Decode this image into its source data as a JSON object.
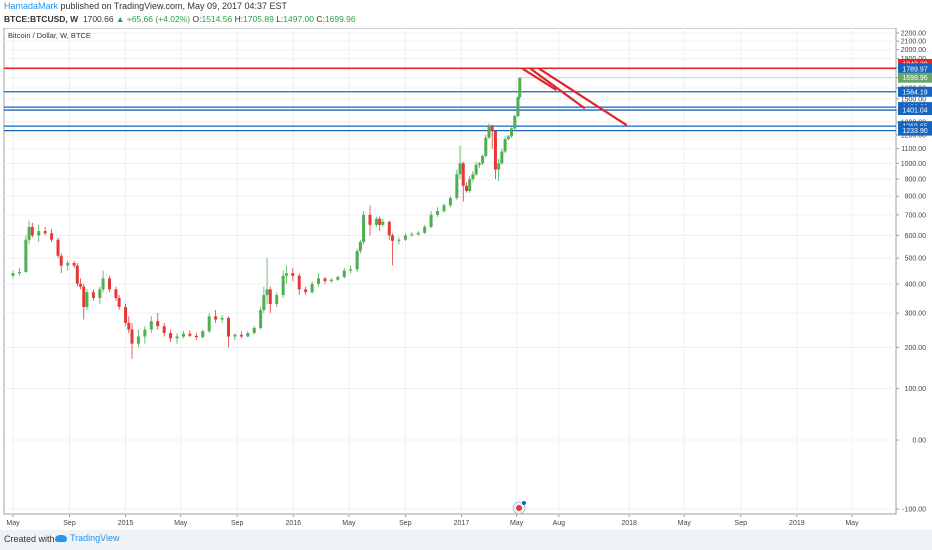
{
  "header": {
    "author": "HamadaMark",
    "published_text": "published on TradingView.com, May 09, 2017 04:37 EST",
    "symbol": "BTCE:BTCUSD, W",
    "last": "1700.66",
    "change": "+65.66 (+4.02%)",
    "open_label": "O:",
    "open": "1514.56",
    "high_label": "H:",
    "high": "1705.89",
    "low_label": "L:",
    "low": "1497.00",
    "close_label": "C:",
    "close": "1699.96"
  },
  "footer": {
    "created_with": "Created with",
    "brand": "TradingView"
  },
  "colors": {
    "up": "#4caf50",
    "down": "#e53935",
    "support": "#1565c0",
    "resistance": "#e0252b",
    "last_price": "#6aa56a",
    "accent": "#2196f3"
  },
  "chart_data": {
    "type": "candlestick",
    "title": "Bitcoin / Dollar, W, BTCE",
    "y_scale": "log",
    "ylim": [
      -100,
      2200
    ],
    "y_ticks": [
      -100,
      0,
      100,
      200,
      300,
      400,
      500,
      600,
      700,
      800,
      900,
      1000,
      1100,
      1200,
      1300,
      1400,
      1500,
      1600,
      1700,
      1800,
      1900,
      2000,
      2100,
      2200
    ],
    "y_tick_labels": [
      "-100.00",
      "0.00",
      "100.00",
      "200.00",
      "300.00",
      "400.00",
      "500.00",
      "600.00",
      "700.00",
      "800.00",
      "900.00",
      "1000.00",
      "1100.00",
      "1200.00",
      "1300.00",
      "1400.00",
      "1500.00",
      "1600.00",
      "1700.00",
      "1800.00",
      "1900.00",
      "2000.00",
      "2100.00",
      "2200.00"
    ],
    "x_range": [
      "2014-05-01",
      "2019-07-01"
    ],
    "x_ticks": [
      {
        "date": "2014-05-01",
        "label": "May"
      },
      {
        "date": "2014-09-01",
        "label": "Sep"
      },
      {
        "date": "2015-01-01",
        "label": "2015"
      },
      {
        "date": "2015-05-01",
        "label": "May"
      },
      {
        "date": "2015-09-01",
        "label": "Sep"
      },
      {
        "date": "2016-01-01",
        "label": "2016"
      },
      {
        "date": "2016-05-01",
        "label": "May"
      },
      {
        "date": "2016-09-01",
        "label": "Sep"
      },
      {
        "date": "2017-01-01",
        "label": "2017"
      },
      {
        "date": "2017-05-01",
        "label": "May"
      },
      {
        "date": "2017-08-01",
        "label": "Aug"
      },
      {
        "date": "2018-01-01",
        "label": "2018"
      },
      {
        "date": "2018-05-01",
        "label": "May"
      },
      {
        "date": "2018-09-01",
        "label": "Sep"
      },
      {
        "date": "2019-01-01",
        "label": "2019"
      },
      {
        "date": "2019-05-01",
        "label": "May"
      }
    ],
    "candles": [
      {
        "date": "2014-05-01",
        "o": 430,
        "h": 450,
        "l": 420,
        "c": 440
      },
      {
        "date": "2014-05-15",
        "o": 440,
        "h": 460,
        "l": 430,
        "c": 445
      },
      {
        "date": "2014-05-29",
        "o": 445,
        "h": 600,
        "l": 440,
        "c": 580
      },
      {
        "date": "2014-06-05",
        "o": 580,
        "h": 670,
        "l": 560,
        "c": 640
      },
      {
        "date": "2014-06-12",
        "o": 640,
        "h": 660,
        "l": 590,
        "c": 600
      },
      {
        "date": "2014-06-26",
        "o": 600,
        "h": 650,
        "l": 570,
        "c": 620
      },
      {
        "date": "2014-07-10",
        "o": 620,
        "h": 640,
        "l": 600,
        "c": 610
      },
      {
        "date": "2014-07-24",
        "o": 610,
        "h": 630,
        "l": 570,
        "c": 580
      },
      {
        "date": "2014-08-07",
        "o": 580,
        "h": 590,
        "l": 500,
        "c": 510
      },
      {
        "date": "2014-08-14",
        "o": 510,
        "h": 520,
        "l": 440,
        "c": 470
      },
      {
        "date": "2014-08-28",
        "o": 470,
        "h": 490,
        "l": 450,
        "c": 480
      },
      {
        "date": "2014-09-11",
        "o": 480,
        "h": 490,
        "l": 460,
        "c": 470
      },
      {
        "date": "2014-09-18",
        "o": 470,
        "h": 480,
        "l": 390,
        "c": 400
      },
      {
        "date": "2014-09-25",
        "o": 400,
        "h": 420,
        "l": 380,
        "c": 390
      },
      {
        "date": "2014-10-02",
        "o": 390,
        "h": 400,
        "l": 280,
        "c": 320
      },
      {
        "date": "2014-10-09",
        "o": 320,
        "h": 380,
        "l": 310,
        "c": 370
      },
      {
        "date": "2014-10-23",
        "o": 370,
        "h": 380,
        "l": 340,
        "c": 350
      },
      {
        "date": "2014-11-06",
        "o": 350,
        "h": 390,
        "l": 330,
        "c": 380
      },
      {
        "date": "2014-11-13",
        "o": 380,
        "h": 450,
        "l": 370,
        "c": 420
      },
      {
        "date": "2014-11-27",
        "o": 420,
        "h": 430,
        "l": 370,
        "c": 380
      },
      {
        "date": "2014-12-11",
        "o": 380,
        "h": 390,
        "l": 340,
        "c": 350
      },
      {
        "date": "2014-12-18",
        "o": 350,
        "h": 360,
        "l": 310,
        "c": 320
      },
      {
        "date": "2015-01-01",
        "o": 320,
        "h": 330,
        "l": 260,
        "c": 270
      },
      {
        "date": "2015-01-08",
        "o": 270,
        "h": 290,
        "l": 240,
        "c": 250
      },
      {
        "date": "2015-01-15",
        "o": 250,
        "h": 270,
        "l": 170,
        "c": 210
      },
      {
        "date": "2015-01-29",
        "o": 210,
        "h": 250,
        "l": 200,
        "c": 230
      },
      {
        "date": "2015-02-12",
        "o": 230,
        "h": 260,
        "l": 210,
        "c": 250
      },
      {
        "date": "2015-02-26",
        "o": 250,
        "h": 290,
        "l": 240,
        "c": 275
      },
      {
        "date": "2015-03-12",
        "o": 275,
        "h": 300,
        "l": 250,
        "c": 260
      },
      {
        "date": "2015-03-26",
        "o": 260,
        "h": 270,
        "l": 230,
        "c": 240
      },
      {
        "date": "2015-04-09",
        "o": 240,
        "h": 250,
        "l": 215,
        "c": 225
      },
      {
        "date": "2015-04-23",
        "o": 225,
        "h": 240,
        "l": 210,
        "c": 230
      },
      {
        "date": "2015-05-07",
        "o": 230,
        "h": 245,
        "l": 225,
        "c": 238
      },
      {
        "date": "2015-05-21",
        "o": 238,
        "h": 248,
        "l": 228,
        "c": 232
      },
      {
        "date": "2015-06-04",
        "o": 232,
        "h": 240,
        "l": 220,
        "c": 228
      },
      {
        "date": "2015-06-18",
        "o": 228,
        "h": 250,
        "l": 225,
        "c": 245
      },
      {
        "date": "2015-07-02",
        "o": 245,
        "h": 300,
        "l": 240,
        "c": 290
      },
      {
        "date": "2015-07-16",
        "o": 290,
        "h": 310,
        "l": 270,
        "c": 280
      },
      {
        "date": "2015-07-30",
        "o": 280,
        "h": 295,
        "l": 270,
        "c": 285
      },
      {
        "date": "2015-08-13",
        "o": 285,
        "h": 290,
        "l": 200,
        "c": 230
      },
      {
        "date": "2015-08-27",
        "o": 230,
        "h": 240,
        "l": 220,
        "c": 235
      },
      {
        "date": "2015-09-10",
        "o": 235,
        "h": 245,
        "l": 225,
        "c": 230
      },
      {
        "date": "2015-09-24",
        "o": 230,
        "h": 245,
        "l": 228,
        "c": 240
      },
      {
        "date": "2015-10-08",
        "o": 240,
        "h": 260,
        "l": 235,
        "c": 255
      },
      {
        "date": "2015-10-22",
        "o": 255,
        "h": 320,
        "l": 250,
        "c": 310
      },
      {
        "date": "2015-10-29",
        "o": 310,
        "h": 390,
        "l": 300,
        "c": 360
      },
      {
        "date": "2015-11-05",
        "o": 360,
        "h": 500,
        "l": 330,
        "c": 380
      },
      {
        "date": "2015-11-12",
        "o": 380,
        "h": 390,
        "l": 300,
        "c": 330
      },
      {
        "date": "2015-11-26",
        "o": 330,
        "h": 370,
        "l": 320,
        "c": 360
      },
      {
        "date": "2015-12-10",
        "o": 360,
        "h": 450,
        "l": 350,
        "c": 430
      },
      {
        "date": "2015-12-17",
        "o": 430,
        "h": 470,
        "l": 400,
        "c": 440
      },
      {
        "date": "2015-12-31",
        "o": 440,
        "h": 460,
        "l": 410,
        "c": 430
      },
      {
        "date": "2016-01-14",
        "o": 430,
        "h": 440,
        "l": 360,
        "c": 380
      },
      {
        "date": "2016-01-28",
        "o": 380,
        "h": 390,
        "l": 360,
        "c": 370
      },
      {
        "date": "2016-02-11",
        "o": 370,
        "h": 410,
        "l": 365,
        "c": 400
      },
      {
        "date": "2016-02-25",
        "o": 400,
        "h": 440,
        "l": 390,
        "c": 420
      },
      {
        "date": "2016-03-10",
        "o": 420,
        "h": 425,
        "l": 400,
        "c": 410
      },
      {
        "date": "2016-03-24",
        "o": 410,
        "h": 420,
        "l": 405,
        "c": 415
      },
      {
        "date": "2016-04-07",
        "o": 415,
        "h": 430,
        "l": 410,
        "c": 425
      },
      {
        "date": "2016-04-21",
        "o": 425,
        "h": 460,
        "l": 420,
        "c": 450
      },
      {
        "date": "2016-05-05",
        "o": 450,
        "h": 470,
        "l": 440,
        "c": 455
      },
      {
        "date": "2016-05-19",
        "o": 455,
        "h": 540,
        "l": 445,
        "c": 530
      },
      {
        "date": "2016-05-26",
        "o": 530,
        "h": 580,
        "l": 520,
        "c": 570
      },
      {
        "date": "2016-06-02",
        "o": 570,
        "h": 720,
        "l": 560,
        "c": 700
      },
      {
        "date": "2016-06-16",
        "o": 700,
        "h": 750,
        "l": 600,
        "c": 650
      },
      {
        "date": "2016-06-30",
        "o": 650,
        "h": 690,
        "l": 640,
        "c": 680
      },
      {
        "date": "2016-07-07",
        "o": 680,
        "h": 690,
        "l": 620,
        "c": 650
      },
      {
        "date": "2016-07-14",
        "o": 650,
        "h": 680,
        "l": 640,
        "c": 665
      },
      {
        "date": "2016-07-28",
        "o": 665,
        "h": 670,
        "l": 580,
        "c": 600
      },
      {
        "date": "2016-08-04",
        "o": 600,
        "h": 610,
        "l": 470,
        "c": 575
      },
      {
        "date": "2016-08-18",
        "o": 575,
        "h": 590,
        "l": 560,
        "c": 580
      },
      {
        "date": "2016-09-01",
        "o": 580,
        "h": 610,
        "l": 575,
        "c": 600
      },
      {
        "date": "2016-09-15",
        "o": 600,
        "h": 615,
        "l": 595,
        "c": 605
      },
      {
        "date": "2016-09-29",
        "o": 605,
        "h": 620,
        "l": 598,
        "c": 612
      },
      {
        "date": "2016-10-13",
        "o": 612,
        "h": 650,
        "l": 605,
        "c": 640
      },
      {
        "date": "2016-10-27",
        "o": 640,
        "h": 720,
        "l": 635,
        "c": 700
      },
      {
        "date": "2016-11-10",
        "o": 700,
        "h": 740,
        "l": 690,
        "c": 720
      },
      {
        "date": "2016-11-24",
        "o": 720,
        "h": 760,
        "l": 710,
        "c": 750
      },
      {
        "date": "2016-12-08",
        "o": 750,
        "h": 800,
        "l": 740,
        "c": 790
      },
      {
        "date": "2016-12-22",
        "o": 790,
        "h": 960,
        "l": 780,
        "c": 930
      },
      {
        "date": "2016-12-29",
        "o": 930,
        "h": 1120,
        "l": 900,
        "c": 1000
      },
      {
        "date": "2017-01-05",
        "o": 1000,
        "h": 1010,
        "l": 770,
        "c": 860
      },
      {
        "date": "2017-01-12",
        "o": 860,
        "h": 880,
        "l": 820,
        "c": 830
      },
      {
        "date": "2017-01-19",
        "o": 830,
        "h": 920,
        "l": 820,
        "c": 900
      },
      {
        "date": "2017-01-26",
        "o": 900,
        "h": 950,
        "l": 880,
        "c": 930
      },
      {
        "date": "2017-02-02",
        "o": 930,
        "h": 1010,
        "l": 920,
        "c": 990
      },
      {
        "date": "2017-02-09",
        "o": 990,
        "h": 1010,
        "l": 970,
        "c": 1000
      },
      {
        "date": "2017-02-16",
        "o": 1000,
        "h": 1060,
        "l": 990,
        "c": 1050
      },
      {
        "date": "2017-02-23",
        "o": 1050,
        "h": 1200,
        "l": 1040,
        "c": 1180
      },
      {
        "date": "2017-03-02",
        "o": 1180,
        "h": 1290,
        "l": 1170,
        "c": 1270
      },
      {
        "date": "2017-03-09",
        "o": 1270,
        "h": 1280,
        "l": 1100,
        "c": 1230
      },
      {
        "date": "2017-03-16",
        "o": 1230,
        "h": 1240,
        "l": 900,
        "c": 960
      },
      {
        "date": "2017-03-23",
        "o": 960,
        "h": 1030,
        "l": 890,
        "c": 1000
      },
      {
        "date": "2017-03-30",
        "o": 1000,
        "h": 1100,
        "l": 990,
        "c": 1080
      },
      {
        "date": "2017-04-06",
        "o": 1080,
        "h": 1190,
        "l": 1070,
        "c": 1170
      },
      {
        "date": "2017-04-13",
        "o": 1170,
        "h": 1200,
        "l": 1160,
        "c": 1190
      },
      {
        "date": "2017-04-20",
        "o": 1190,
        "h": 1260,
        "l": 1180,
        "c": 1250
      },
      {
        "date": "2017-04-27",
        "o": 1250,
        "h": 1360,
        "l": 1240,
        "c": 1350
      },
      {
        "date": "2017-05-04",
        "o": 1350,
        "h": 1520,
        "l": 1340,
        "c": 1514.56
      },
      {
        "date": "2017-05-08",
        "o": 1514.56,
        "h": 1705.89,
        "l": 1497.0,
        "c": 1699.96
      }
    ],
    "horizontal_levels": [
      {
        "value": 1842.38,
        "label": "1842.38",
        "kind": "resistance"
      },
      {
        "value": 1796.8,
        "label": "1796.80",
        "kind": "resistance"
      },
      {
        "value": 1789.97,
        "label": "1789.97",
        "kind": "support"
      },
      {
        "value": 1699.96,
        "label": "1699.96",
        "kind": "last_price"
      },
      {
        "value": 1564.19,
        "label": "1564.19",
        "kind": "support"
      },
      {
        "value": 1426.0,
        "label": "1426.00",
        "kind": "support"
      },
      {
        "value": 1401.04,
        "label": "1401.04",
        "kind": "support"
      },
      {
        "value": 1268.65,
        "label": "1268.65",
        "kind": "support"
      },
      {
        "value": 1233.9,
        "label": "1233.90",
        "kind": "support"
      }
    ],
    "trend_lines": [
      {
        "from": [
          "2017-05-15",
          1790
        ],
        "to": [
          "2017-07-25",
          1585
        ]
      },
      {
        "from": [
          "2017-06-01",
          1790
        ],
        "to": [
          "2017-09-25",
          1420
        ]
      },
      {
        "from": [
          "2017-06-20",
          1790
        ],
        "to": [
          "2017-12-25",
          1280
        ]
      }
    ]
  }
}
